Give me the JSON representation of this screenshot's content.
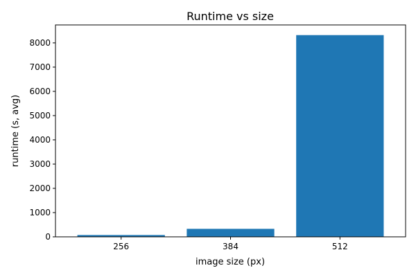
{
  "chart_data": {
    "type": "bar",
    "title": "Runtime vs size",
    "xlabel": "image size (px)",
    "ylabel": "runtime (s, avg)",
    "categories": [
      "256",
      "384",
      "512"
    ],
    "values": [
      75,
      330,
      8320
    ],
    "ylim": [
      0,
      8740
    ],
    "yticks": [
      0,
      1000,
      2000,
      3000,
      4000,
      5000,
      6000,
      7000,
      8000
    ],
    "grid": false,
    "legend": "none",
    "bar_color": "#1f77b4"
  }
}
